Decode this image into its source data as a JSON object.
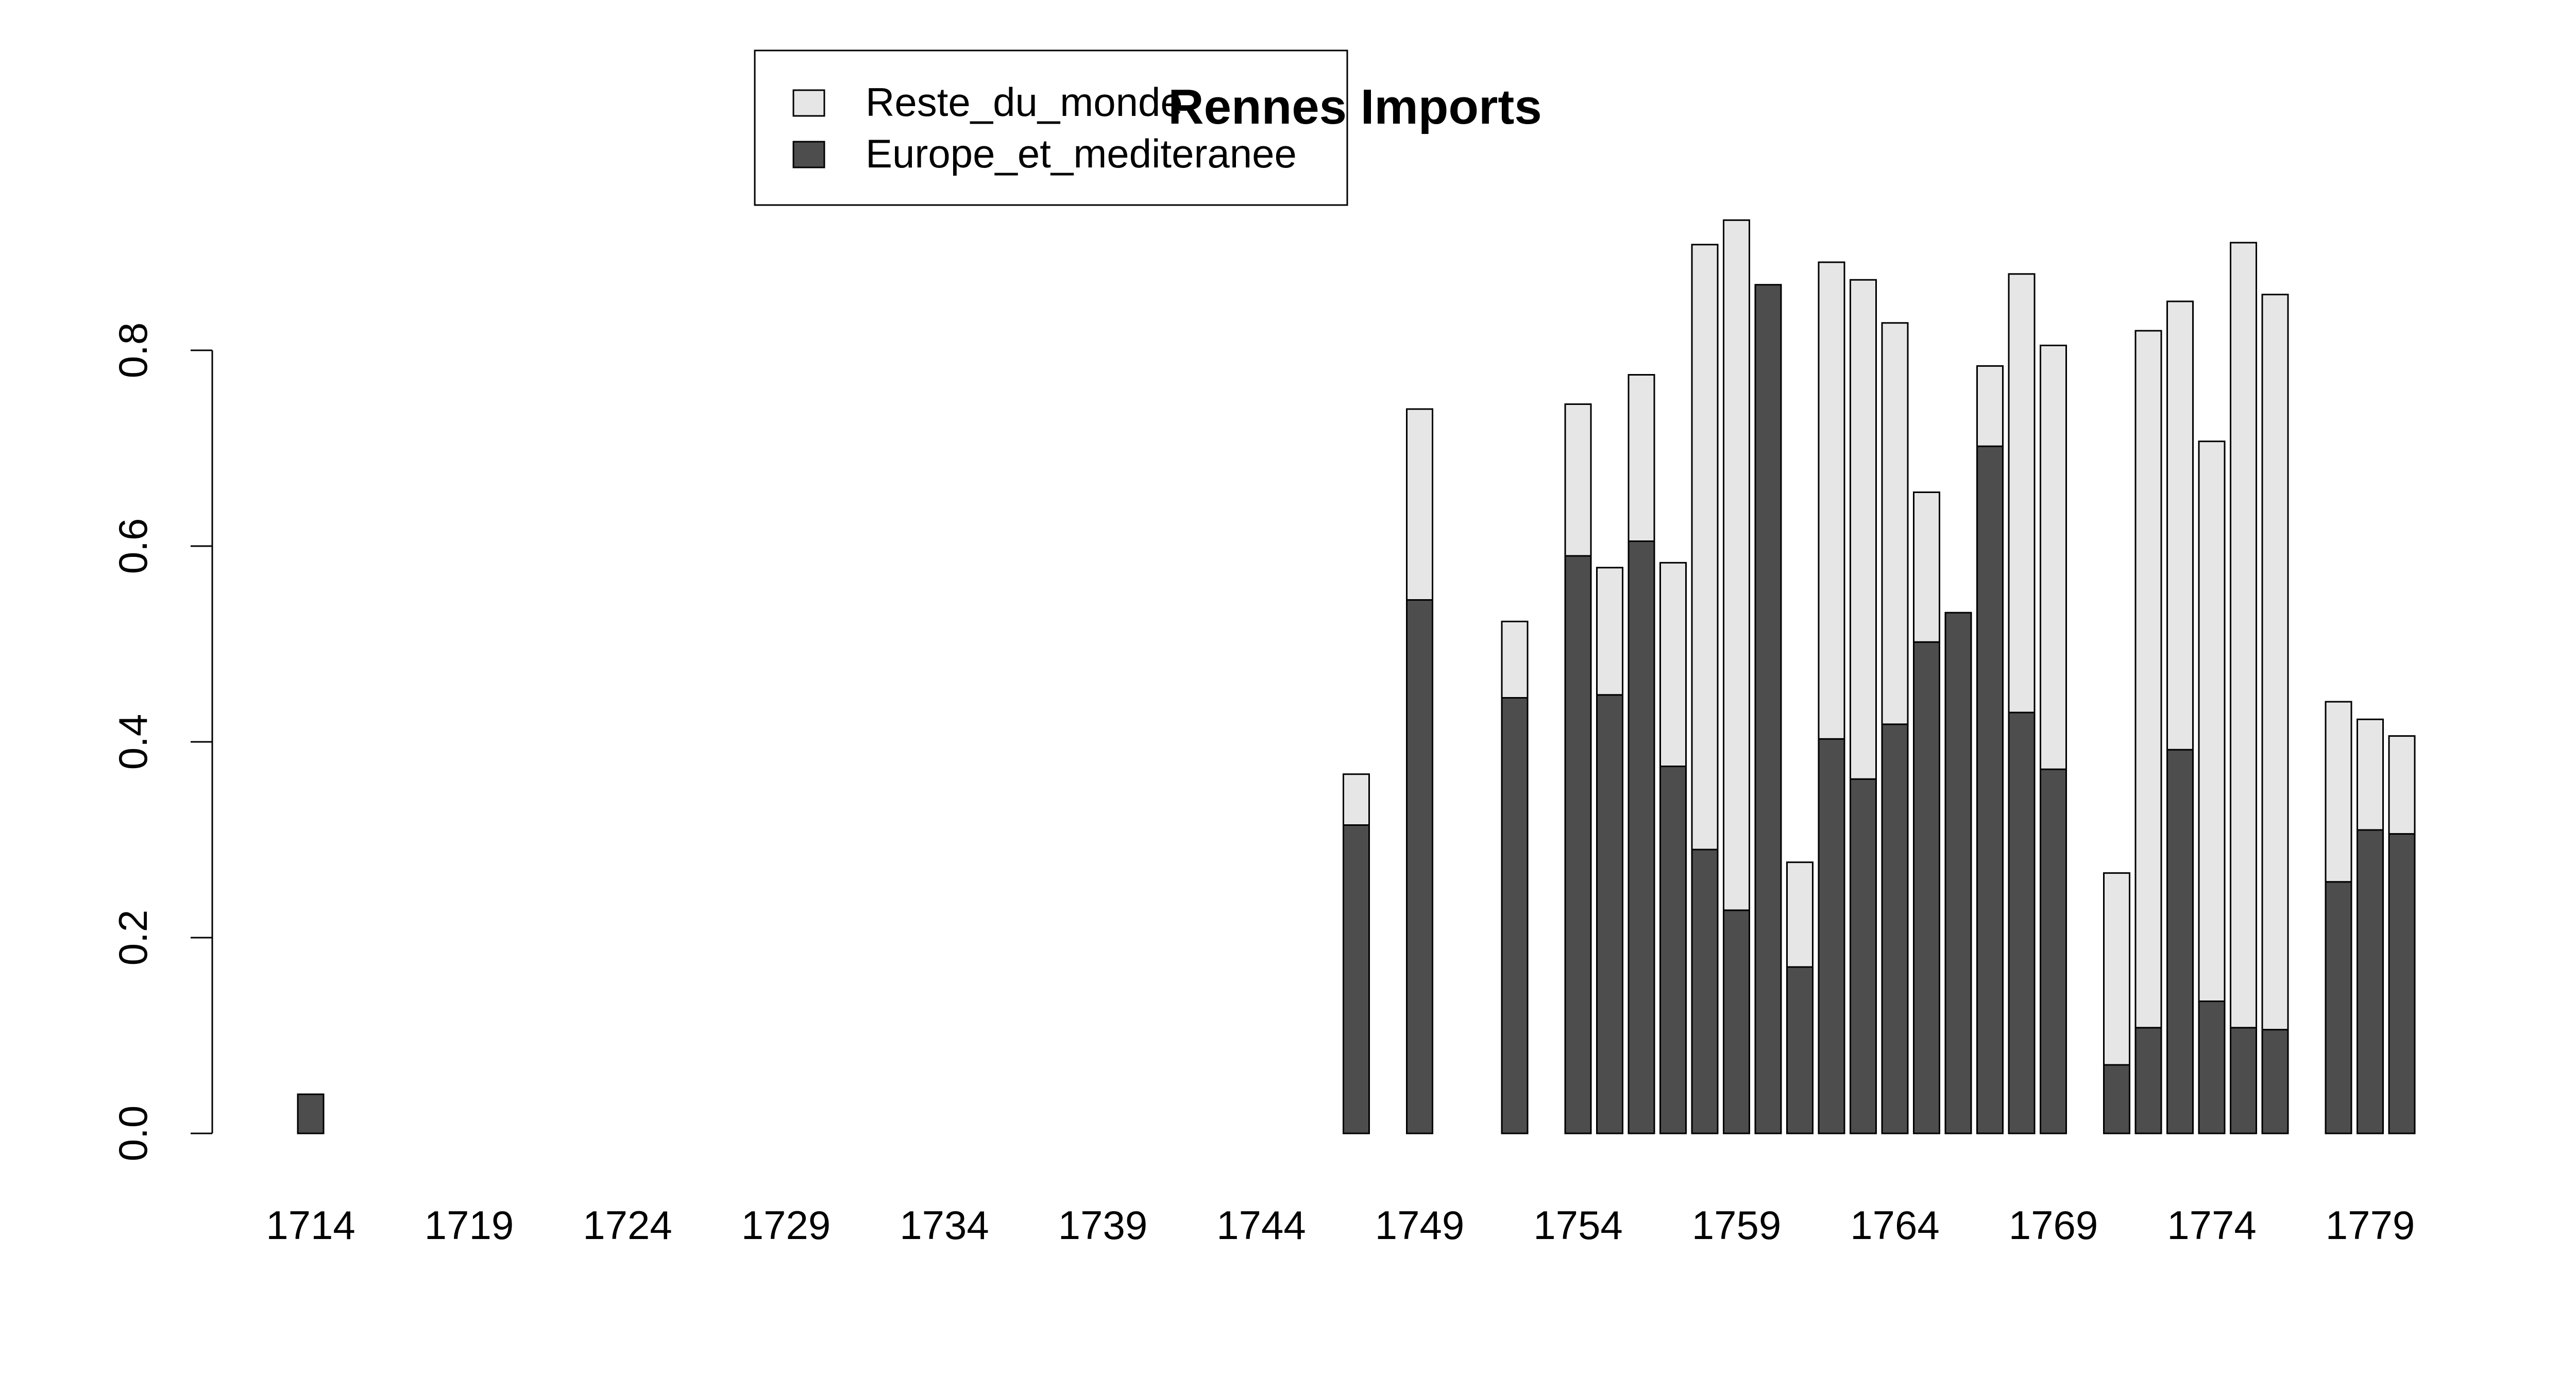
{
  "chart_data": {
    "type": "bar",
    "stacked": true,
    "title": "Rennes Imports",
    "xlabel": "",
    "ylabel": "",
    "ylim": [
      0,
      0.95
    ],
    "yticks": [
      0.0,
      0.2,
      0.4,
      0.6,
      0.8
    ],
    "ytick_labels": [
      "0.0",
      "0.2",
      "0.4",
      "0.6",
      "0.8"
    ],
    "x_range": [
      1714,
      1780
    ],
    "xticks": [
      1714,
      1719,
      1724,
      1729,
      1734,
      1739,
      1744,
      1749,
      1754,
      1759,
      1764,
      1769,
      1774,
      1779
    ],
    "grid": false,
    "legend": {
      "placement": "top-center",
      "entries": [
        {
          "name": "Reste_du_monde",
          "color": "#e6e6e6"
        },
        {
          "name": "Europe_et_mediteranee",
          "color": "#4d4d4d"
        }
      ]
    },
    "series": [
      {
        "name": "Europe_et_mediteranee",
        "color": "#4d4d4d"
      },
      {
        "name": "Reste_du_monde",
        "color": "#e6e6e6"
      }
    ],
    "data": [
      {
        "year": 1714,
        "europe": 0.04,
        "reste": 0.0
      },
      {
        "year": 1747,
        "europe": 0.315,
        "reste": 0.052
      },
      {
        "year": 1749,
        "europe": 0.545,
        "reste": 0.195
      },
      {
        "year": 1752,
        "europe": 0.445,
        "reste": 0.078
      },
      {
        "year": 1754,
        "europe": 0.59,
        "reste": 0.155
      },
      {
        "year": 1755,
        "europe": 0.448,
        "reste": 0.13
      },
      {
        "year": 1756,
        "europe": 0.605,
        "reste": 0.17
      },
      {
        "year": 1757,
        "europe": 0.375,
        "reste": 0.208
      },
      {
        "year": 1758,
        "europe": 0.29,
        "reste": 0.618
      },
      {
        "year": 1759,
        "europe": 0.228,
        "reste": 0.705
      },
      {
        "year": 1760,
        "europe": 0.867,
        "reste": 0.0
      },
      {
        "year": 1761,
        "europe": 0.17,
        "reste": 0.107
      },
      {
        "year": 1762,
        "europe": 0.403,
        "reste": 0.487
      },
      {
        "year": 1763,
        "europe": 0.362,
        "reste": 0.51
      },
      {
        "year": 1764,
        "europe": 0.418,
        "reste": 0.41
      },
      {
        "year": 1765,
        "europe": 0.502,
        "reste": 0.153
      },
      {
        "year": 1766,
        "europe": 0.532,
        "reste": 0.0
      },
      {
        "year": 1767,
        "europe": 0.702,
        "reste": 0.082
      },
      {
        "year": 1768,
        "europe": 0.43,
        "reste": 0.448
      },
      {
        "year": 1769,
        "europe": 0.372,
        "reste": 0.433
      },
      {
        "year": 1771,
        "europe": 0.07,
        "reste": 0.196
      },
      {
        "year": 1772,
        "europe": 0.108,
        "reste": 0.712
      },
      {
        "year": 1773,
        "europe": 0.392,
        "reste": 0.458
      },
      {
        "year": 1774,
        "europe": 0.135,
        "reste": 0.572
      },
      {
        "year": 1775,
        "europe": 0.108,
        "reste": 0.802
      },
      {
        "year": 1776,
        "europe": 0.106,
        "reste": 0.751
      },
      {
        "year": 1778,
        "europe": 0.257,
        "reste": 0.184
      },
      {
        "year": 1779,
        "europe": 0.31,
        "reste": 0.113
      },
      {
        "year": 1780,
        "europe": 0.306,
        "reste": 0.1
      }
    ]
  }
}
